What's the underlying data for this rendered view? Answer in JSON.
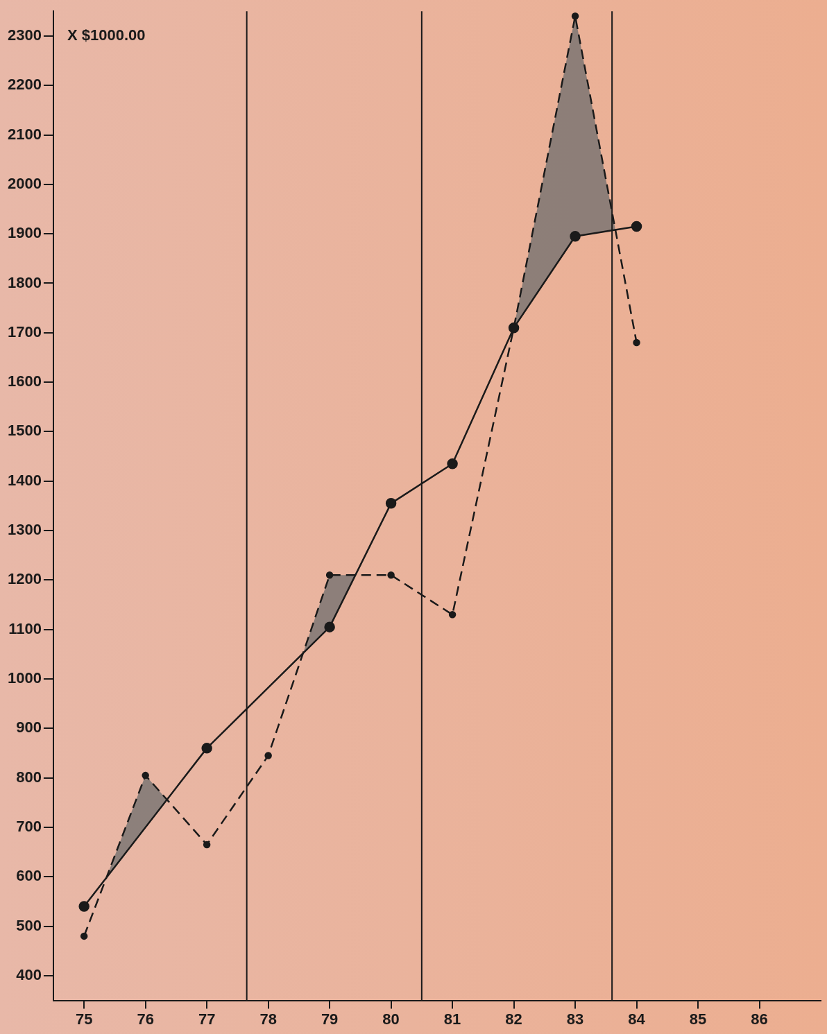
{
  "chart_data": {
    "type": "line",
    "xlim": [
      74.5,
      87
    ],
    "xticks": [
      75,
      76,
      77,
      78,
      79,
      80,
      81,
      82,
      83,
      84,
      85,
      86
    ],
    "ylim": [
      350,
      2350
    ],
    "yticks": [
      400,
      500,
      600,
      700,
      800,
      900,
      1000,
      1100,
      1200,
      1300,
      1400,
      1500,
      1600,
      1700,
      1800,
      1900,
      2000,
      2100,
      2200,
      2300
    ],
    "series": [
      {
        "color": "#1a1a1a",
        "line_style": "solid",
        "marker": "circle",
        "x": [
          75,
          77,
          79,
          80,
          81,
          82,
          83,
          84
        ],
        "values": [
          540,
          860,
          1105,
          1355,
          1435,
          1710,
          1895,
          1915
        ]
      },
      {
        "color": "#1a1a1a",
        "line_style": "dashed",
        "marker": "circle",
        "x": [
          75,
          76,
          77,
          78,
          79,
          80,
          81,
          82,
          83,
          84
        ],
        "values": [
          480,
          805,
          665,
          845,
          1210,
          1210,
          1130,
          1710,
          2340,
          1680
        ]
      }
    ],
    "ref_lines": [
      {
        "axis": "x",
        "value": 77.65,
        "color": "#1a1a1a"
      },
      {
        "axis": "x",
        "value": 80.5,
        "color": "#1a1a1a"
      },
      {
        "axis": "x",
        "value": 83.6,
        "color": "#1a1a1a"
      }
    ],
    "annotations": [
      "X $1000.00"
    ],
    "grid": false,
    "legend": false
  }
}
